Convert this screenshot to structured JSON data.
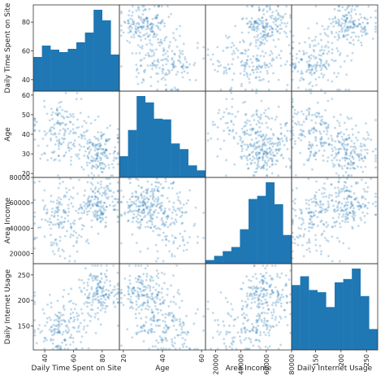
{
  "chart_data": {
    "type": "scatter",
    "subtype": "scatter-matrix",
    "variables": [
      "Daily Time Spent on Site",
      "Age",
      "Area Income",
      "Daily Internet Usage"
    ],
    "axis_ranges": {
      "Daily Time Spent on Site": [
        32,
        92
      ],
      "Age": [
        18,
        62
      ],
      "Area Income": [
        12000,
        80000
      ],
      "Daily Internet Usage": [
        103,
        272
      ]
    },
    "ticks": {
      "Daily Time Spent on Site": [
        40,
        60,
        80
      ],
      "Age": [
        20,
        40,
        60
      ],
      "Area Income": [
        20000,
        40000,
        60000,
        80000
      ],
      "Daily Internet Usage": [
        150,
        200,
        250
      ]
    },
    "y_ticks": {
      "Daily Time Spent on Site": [
        40,
        60,
        80
      ],
      "Age": [
        20,
        30,
        40,
        50,
        60
      ],
      "Area Income": [
        20000,
        40000,
        60000,
        80000
      ],
      "Daily Internet Usage": [
        150,
        200,
        250
      ]
    },
    "histograms": {
      "Daily Time Spent on Site": [
        42,
        56,
        51,
        48,
        52,
        60,
        72,
        100,
        87,
        45
      ],
      "Age": [
        30,
        67,
        115,
        106,
        83,
        82,
        48,
        40,
        17,
        10
      ],
      "Area Income": [
        7,
        15,
        24,
        32,
        66,
        124,
        130,
        156,
        114,
        55
      ],
      "Daily Internet Usage": [
        118,
        134,
        109,
        105,
        78,
        123,
        129,
        148,
        98,
        38
      ]
    },
    "color": "#1f77b4",
    "grid": false,
    "legend": "none"
  }
}
